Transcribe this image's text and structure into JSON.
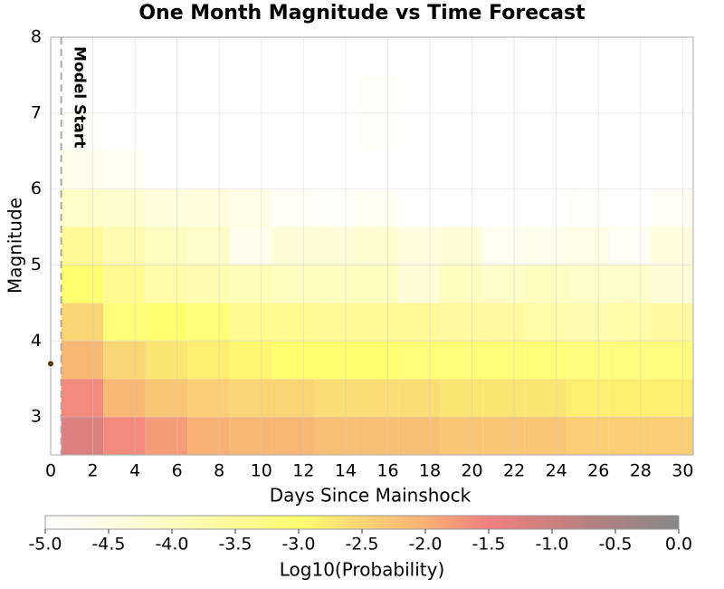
{
  "chart_data": {
    "type": "heatmap",
    "title": "One Month Magnitude vs Time Forecast",
    "x_label": "Days Since Mainshock",
    "y_label": "Magnitude",
    "annotation": {
      "text": "Model Start",
      "x": 0.5
    },
    "points": [
      {
        "x": 0,
        "y": 3.7,
        "color": "#5a3a10"
      }
    ],
    "x_bins": [
      0.5,
      2.5,
      4.5,
      6.5,
      8.5,
      10.5,
      12.5,
      14.5,
      16.5,
      18.5,
      20.5,
      22.5,
      24.5,
      26.5,
      28.5,
      30.5
    ],
    "y_bins": [
      2.5,
      3,
      3.5,
      4,
      4.5,
      5,
      5.5,
      6,
      6.5,
      7,
      7.5,
      8
    ],
    "values": [
      [
        -1.2,
        -1.6,
        -1.8,
        -2.0,
        -2.1,
        -2.1,
        -2.2,
        -2.2,
        -2.2,
        -2.3,
        -2.3,
        -2.3,
        -2.4,
        -2.4,
        -2.4
      ],
      [
        -1.6,
        -2.1,
        -2.3,
        -2.4,
        -2.5,
        -2.5,
        -2.6,
        -2.6,
        -2.6,
        -2.7,
        -2.7,
        -2.7,
        -2.8,
        -2.8,
        -2.8
      ],
      [
        -2.1,
        -2.5,
        -2.7,
        -2.8,
        -2.9,
        -3.0,
        -3.0,
        -3.0,
        -3.1,
        -3.1,
        -3.1,
        -3.1,
        -3.2,
        -3.2,
        -3.2
      ],
      [
        -2.5,
        -3.1,
        -3.0,
        -3.1,
        -3.4,
        -3.4,
        -3.5,
        -3.5,
        -3.5,
        -3.6,
        -3.6,
        -3.7,
        -3.8,
        -3.7,
        -3.6
      ],
      [
        -3.0,
        -3.4,
        -3.7,
        -3.8,
        -3.9,
        -4.0,
        -4.0,
        -4.0,
        -4.3,
        -4.0,
        -4.1,
        -4.0,
        -4.1,
        -4.1,
        -4.3
      ],
      [
        -3.5,
        -3.8,
        -4.0,
        -4.1,
        -4.6,
        -4.3,
        -4.3,
        -4.2,
        -4.4,
        -4.3,
        -4.7,
        -4.6,
        -4.5,
        -4.8,
        -4.4
      ],
      [
        -4.1,
        -4.2,
        -4.4,
        -4.4,
        -4.5,
        -4.8,
        -4.9,
        -4.7,
        -5.0,
        -5.0,
        -5.0,
        -5.0,
        -4.9,
        -5.0,
        -4.8
      ],
      [
        -4.6,
        -4.7,
        -5.0,
        -5.0,
        -5.0,
        -5.0,
        -5.0,
        -5.0,
        -5.0,
        -5.0,
        -5.0,
        -5.0,
        -5.0,
        -5.0,
        -5.0
      ],
      [
        -4.9,
        -5.0,
        -5.0,
        -5.0,
        -5.0,
        -5.0,
        -5.0,
        -4.9,
        -5.0,
        -5.0,
        -5.0,
        -5.0,
        -5.0,
        -5.0,
        -5.0
      ],
      [
        -5.0,
        -5.0,
        -5.0,
        -5.0,
        -5.0,
        -5.0,
        -5.0,
        -4.9,
        -5.0,
        -5.0,
        -5.0,
        -5.0,
        -5.0,
        -5.0,
        -5.0
      ],
      [
        -5.0,
        -5.0,
        -5.0,
        -5.0,
        -5.0,
        -5.0,
        -5.0,
        -5.0,
        -5.0,
        -5.0,
        -5.0,
        -5.0,
        -5.0,
        -5.0,
        -5.0
      ]
    ],
    "xlim": [
      0,
      30.5
    ],
    "xticks": [
      0,
      2,
      4,
      6,
      8,
      10,
      12,
      14,
      16,
      18,
      20,
      22,
      24,
      26,
      28,
      30
    ],
    "ylim": [
      2.5,
      8
    ],
    "yticks": [
      3,
      4,
      5,
      6,
      7,
      8
    ],
    "grid": true,
    "colorbar": {
      "label": "Log10(Probability)",
      "lim": [
        -5,
        0
      ],
      "ticks": [
        {
          "value": -5,
          "label": "-5.0"
        },
        {
          "value": -4.5,
          "label": "-4.5"
        },
        {
          "value": -4,
          "label": "-4.0"
        },
        {
          "value": -3.5,
          "label": "-3.5"
        },
        {
          "value": -3,
          "label": "-3.0"
        },
        {
          "value": -2.5,
          "label": "-2.5"
        },
        {
          "value": -2,
          "label": "-2.0"
        },
        {
          "value": -1.5,
          "label": "-1.5"
        },
        {
          "value": -1,
          "label": "-1.0"
        },
        {
          "value": -0.5,
          "label": "-0.5"
        },
        {
          "value": 0,
          "label": "0.0"
        }
      ],
      "colors": [
        "#ffffff",
        "#fffde6",
        "#fffcc0",
        "#fffa98",
        "#ffff70",
        "#f9d575",
        "#f8b074",
        "#f08080",
        "#cc8080",
        "#a88282",
        "#888888"
      ]
    }
  }
}
